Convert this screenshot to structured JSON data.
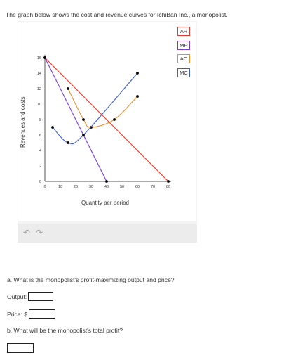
{
  "intro_text": "The graph below shows the cost and revenue curves for IchiBan Inc., a monopolist.",
  "legend": [
    {
      "label": "AR",
      "color": "#e8382d"
    },
    {
      "label": "MR",
      "color": "#7a3bd8"
    },
    {
      "label": "AC",
      "color": "#f08a24"
    },
    {
      "label": "MC",
      "color": "#3b5bd8"
    }
  ],
  "toolbar": {
    "undo_icon": "undo-icon",
    "redo_icon": "redo-icon"
  },
  "questions": {
    "a": "a. What is the monopolist's profit-maximizing output and price?",
    "output_label": "Output:",
    "price_label": "Price: $",
    "b": "b. What will be the monopolist's total profit?"
  },
  "chart_data": {
    "type": "line",
    "xlabel": "Quantity per period",
    "ylabel": "Revenues and costs",
    "xlim": [
      0,
      80
    ],
    "ylim": [
      0,
      16
    ],
    "xticks": [
      0,
      10,
      20,
      30,
      40,
      50,
      60,
      70,
      80
    ],
    "yticks": [
      0,
      2,
      4,
      6,
      8,
      10,
      12,
      14,
      16
    ],
    "grid": false,
    "series": [
      {
        "name": "AR",
        "color": "#e8382d",
        "curve": "line",
        "points": [
          [
            0,
            16
          ],
          [
            80,
            0
          ]
        ]
      },
      {
        "name": "MR",
        "color": "#7a3bd8",
        "curve": "line",
        "points": [
          [
            0,
            16
          ],
          [
            40,
            0
          ]
        ]
      },
      {
        "name": "AC",
        "color": "#f08a24",
        "curve": "smooth",
        "points": [
          [
            15,
            12
          ],
          [
            25,
            8
          ],
          [
            30,
            7
          ],
          [
            45,
            8
          ],
          [
            60,
            11
          ]
        ]
      },
      {
        "name": "MC",
        "color": "#3b5bd8",
        "curve": "smooth",
        "points": [
          [
            5,
            7
          ],
          [
            15,
            5
          ],
          [
            25,
            6
          ],
          [
            60,
            14
          ]
        ]
      }
    ]
  }
}
